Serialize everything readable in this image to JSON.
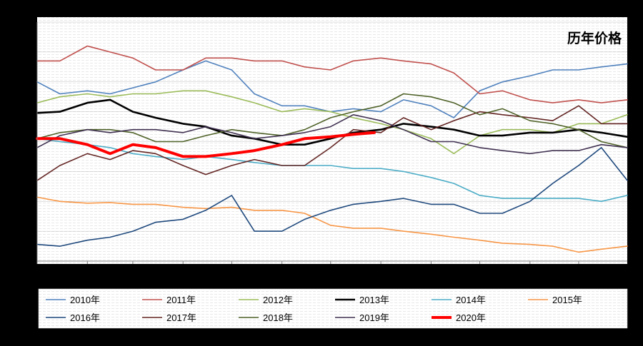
{
  "chart_data": {
    "type": "line",
    "title": "历年价格",
    "xlabel": "",
    "ylabel": "",
    "ylim": [
      1500,
      5500
    ],
    "yticks": [
      1500,
      2000,
      2500,
      3000,
      3500,
      4000,
      4500,
      5000,
      5500
    ],
    "xticks": [
      "1/1",
      "2/1",
      "3/1",
      "4/1",
      "5/1",
      "6/1",
      "7/1",
      "8/1",
      "9/1",
      "10/1",
      "11/1",
      "12/1"
    ],
    "grid": true,
    "legend_position": "bottom",
    "series": [
      {
        "name": "2010年",
        "color": "#4f81bd",
        "x": [
          "1/1",
          "1/15",
          "2/1",
          "2/15",
          "3/1",
          "3/15",
          "4/1",
          "4/15",
          "5/1",
          "5/15",
          "6/1",
          "6/15",
          "7/1",
          "7/15",
          "8/1",
          "8/15",
          "9/1",
          "9/15",
          "10/1",
          "10/15",
          "11/1",
          "11/15",
          "12/1",
          "12/15",
          "12/31"
        ],
        "y": [
          4500,
          4300,
          4350,
          4300,
          4400,
          4500,
          4700,
          4850,
          4700,
          4300,
          4100,
          4100,
          4000,
          4050,
          4000,
          4200,
          4100,
          3900,
          4350,
          4500,
          4600,
          4700,
          4700,
          4750,
          4800
        ]
      },
      {
        "name": "2011年",
        "color": "#c0504d",
        "x": [
          "1/1",
          "1/15",
          "2/1",
          "2/15",
          "3/1",
          "3/15",
          "4/1",
          "4/15",
          "5/1",
          "5/15",
          "6/1",
          "6/15",
          "7/1",
          "7/15",
          "8/1",
          "8/15",
          "9/1",
          "9/15",
          "10/1",
          "10/15",
          "11/1",
          "11/15",
          "12/1",
          "12/15",
          "12/31"
        ],
        "y": [
          4850,
          4850,
          5100,
          5000,
          4900,
          4700,
          4700,
          4900,
          4900,
          4850,
          4850,
          4750,
          4700,
          4850,
          4900,
          4850,
          4800,
          4650,
          4300,
          4350,
          4200,
          4150,
          4200,
          4150,
          4200
        ]
      },
      {
        "name": "2012年",
        "color": "#9bbb59",
        "x": [
          "1/1",
          "1/15",
          "2/1",
          "2/15",
          "3/1",
          "3/15",
          "4/1",
          "4/15",
          "5/1",
          "5/15",
          "6/1",
          "6/15",
          "7/1",
          "7/15",
          "8/1",
          "8/15",
          "9/1",
          "9/15",
          "10/1",
          "10/15",
          "11/1",
          "11/15",
          "12/1",
          "12/15",
          "12/31"
        ],
        "y": [
          4150,
          4250,
          4300,
          4250,
          4300,
          4300,
          4350,
          4350,
          4250,
          4150,
          4000,
          4050,
          4000,
          3900,
          3800,
          3700,
          3550,
          3300,
          3600,
          3700,
          3700,
          3650,
          3800,
          3800,
          3950
        ]
      },
      {
        "name": "2013年",
        "color": "#000000",
        "x": [
          "1/1",
          "1/15",
          "2/1",
          "2/15",
          "3/1",
          "3/15",
          "4/1",
          "4/15",
          "5/1",
          "5/15",
          "6/1",
          "6/15",
          "7/1",
          "7/15",
          "8/1",
          "8/15",
          "9/1",
          "9/15",
          "10/1",
          "10/15",
          "11/1",
          "11/15",
          "12/1",
          "12/15",
          "12/31"
        ],
        "y": [
          3980,
          4000,
          4150,
          4200,
          4000,
          3900,
          3800,
          3750,
          3600,
          3550,
          3450,
          3450,
          3550,
          3650,
          3700,
          3800,
          3750,
          3700,
          3600,
          3600,
          3650,
          3650,
          3700,
          3650,
          3580
        ]
      },
      {
        "name": "2014年",
        "color": "#4bacc6",
        "x": [
          "1/1",
          "1/15",
          "2/1",
          "2/15",
          "3/1",
          "3/15",
          "4/1",
          "4/15",
          "5/1",
          "5/15",
          "6/1",
          "6/15",
          "7/1",
          "7/15",
          "8/1",
          "8/15",
          "9/1",
          "9/15",
          "10/1",
          "10/15",
          "11/1",
          "11/15",
          "12/1",
          "12/15",
          "12/31"
        ],
        "y": [
          3550,
          3500,
          3450,
          3400,
          3300,
          3250,
          3200,
          3250,
          3200,
          3150,
          3100,
          3100,
          3100,
          3050,
          3050,
          3000,
          2900,
          2800,
          2600,
          2550,
          2550,
          2550,
          2550,
          2500,
          2600
        ]
      },
      {
        "name": "2015年",
        "color": "#f79646",
        "x": [
          "1/1",
          "1/15",
          "2/1",
          "2/15",
          "3/1",
          "3/15",
          "4/1",
          "4/15",
          "5/1",
          "5/15",
          "6/1",
          "6/15",
          "7/1",
          "7/15",
          "8/1",
          "8/15",
          "9/1",
          "9/15",
          "10/1",
          "10/15",
          "11/1",
          "11/15",
          "12/1",
          "12/15",
          "12/31"
        ],
        "y": [
          2570,
          2500,
          2470,
          2480,
          2450,
          2450,
          2400,
          2380,
          2400,
          2350,
          2350,
          2300,
          2100,
          2050,
          2050,
          2000,
          1950,
          1900,
          1850,
          1800,
          1780,
          1750,
          1650,
          1700,
          1750
        ]
      },
      {
        "name": "2016年",
        "color": "#1f497d",
        "x": [
          "1/1",
          "1/15",
          "2/1",
          "2/15",
          "3/1",
          "3/15",
          "4/1",
          "4/15",
          "5/1",
          "5/15",
          "6/1",
          "6/15",
          "7/1",
          "7/15",
          "8/1",
          "8/15",
          "9/1",
          "9/15",
          "10/1",
          "10/15",
          "11/1",
          "11/15",
          "12/1",
          "12/15",
          "12/31"
        ],
        "y": [
          1780,
          1750,
          1850,
          1900,
          2000,
          2150,
          2200,
          2350,
          2600,
          2000,
          2000,
          2200,
          2350,
          2450,
          2500,
          2550,
          2450,
          2450,
          2300,
          2300,
          2500,
          2800,
          3100,
          3400,
          2850
        ]
      },
      {
        "name": "2017年",
        "color": "#632523",
        "x": [
          "1/1",
          "1/15",
          "2/1",
          "2/15",
          "3/1",
          "3/15",
          "4/1",
          "4/15",
          "5/1",
          "5/15",
          "6/1",
          "6/15",
          "7/1",
          "7/15",
          "8/1",
          "8/15",
          "9/1",
          "9/15",
          "10/1",
          "10/15",
          "11/1",
          "11/15",
          "12/1",
          "12/15",
          "12/31"
        ],
        "y": [
          2850,
          3100,
          3300,
          3200,
          3350,
          3300,
          3100,
          2950,
          3100,
          3200,
          3100,
          3100,
          3400,
          3700,
          3650,
          3900,
          3700,
          3850,
          4000,
          3950,
          3900,
          3850,
          4100,
          3800,
          3800
        ]
      },
      {
        "name": "2018年",
        "color": "#4f6228",
        "x": [
          "1/1",
          "1/15",
          "2/1",
          "2/15",
          "3/1",
          "3/15",
          "4/1",
          "4/15",
          "5/1",
          "5/15",
          "6/1",
          "6/15",
          "7/1",
          "7/15",
          "8/1",
          "8/15",
          "9/1",
          "9/15",
          "10/1",
          "10/15",
          "11/1",
          "11/15",
          "12/1",
          "12/15",
          "12/31"
        ],
        "y": [
          3550,
          3650,
          3700,
          3700,
          3650,
          3500,
          3500,
          3600,
          3700,
          3650,
          3600,
          3700,
          3900,
          4000,
          4100,
          4300,
          4250,
          4150,
          3950,
          4050,
          3850,
          3800,
          3700,
          3500,
          3400
        ]
      },
      {
        "name": "2019年",
        "color": "#403151",
        "x": [
          "1/1",
          "1/15",
          "2/1",
          "2/15",
          "3/1",
          "3/15",
          "4/1",
          "4/15",
          "5/1",
          "5/15",
          "6/1",
          "6/15",
          "7/1",
          "7/15",
          "8/1",
          "8/15",
          "9/1",
          "9/15",
          "10/1",
          "10/15",
          "11/1",
          "11/15",
          "12/1",
          "12/15",
          "12/31"
        ],
        "y": [
          3400,
          3600,
          3700,
          3650,
          3700,
          3700,
          3650,
          3750,
          3650,
          3550,
          3600,
          3650,
          3750,
          3950,
          3850,
          3700,
          3500,
          3500,
          3400,
          3350,
          3300,
          3350,
          3350,
          3450,
          3400
        ]
      },
      {
        "name": "2020年",
        "color": "#ff0000",
        "x": [
          "1/1",
          "1/15",
          "2/1",
          "2/15",
          "3/1",
          "3/15",
          "4/1",
          "4/15",
          "5/1",
          "5/15",
          "6/1",
          "6/15",
          "7/1",
          "7/15",
          "7/28"
        ],
        "y": [
          3550,
          3550,
          3450,
          3300,
          3450,
          3400,
          3250,
          3250,
          3300,
          3350,
          3450,
          3550,
          3580,
          3620,
          3650
        ]
      }
    ]
  }
}
